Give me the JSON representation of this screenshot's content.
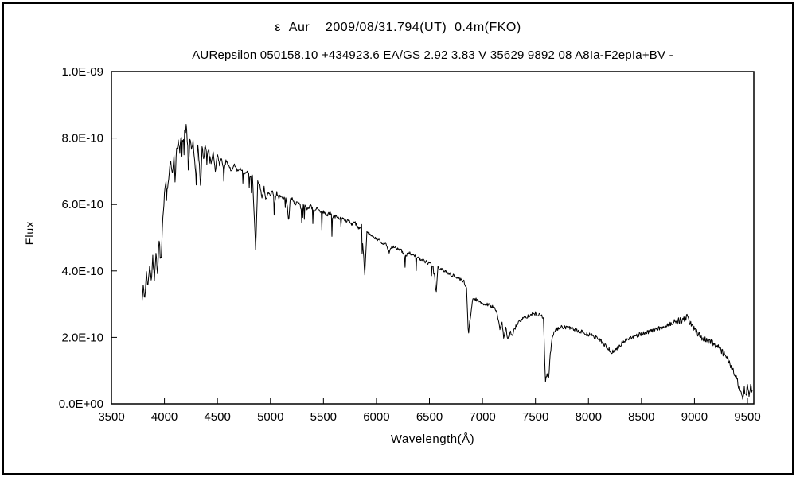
{
  "header": {
    "title": "ε  Aur    2009/08/31.794(UT)  0.4m(FKO)",
    "subtitle": "AURepsilon 050158.10 +434923.6 EA/GS 2.92 3.83 V 35629 9892 08 A8Ia-F2epIa+BV -"
  },
  "chart_data": {
    "type": "line",
    "title": "ε Aur 2009/08/31.794(UT) 0.4m(FKO)",
    "subtitle": "AURepsilon 050158.10 +434923.6 EA/GS 2.92 3.83 V 35629 9892 08 A8Ia-F2epIa+BV -",
    "xlabel": "Wavelength(Å)",
    "ylabel": "Flux",
    "xlim": [
      3500,
      9560
    ],
    "ylim": [
      0,
      1e-09
    ],
    "grid": false,
    "legend": "none",
    "line_color": "#000000",
    "x_ticks": [
      3500,
      4000,
      4500,
      5000,
      5500,
      6000,
      6500,
      7000,
      7500,
      8000,
      8500,
      9000,
      9500
    ],
    "y_tick_values_1e10": [
      0,
      2,
      4,
      6,
      8,
      10
    ],
    "y_tick_labels": [
      "0.0E+00",
      "2.0E-10",
      "4.0E-10",
      "6.0E-10",
      "8.0E-10",
      "1.0E-09"
    ],
    "flux_scale": 1e-10,
    "series": [
      {
        "name": "epsilon-aur-spectrum",
        "points_wavelength_flux1e10": [
          [
            3790,
            3.1
          ],
          [
            3800,
            3.5
          ],
          [
            3815,
            3.2
          ],
          [
            3830,
            3.9
          ],
          [
            3845,
            3.5
          ],
          [
            3860,
            4.2
          ],
          [
            3875,
            3.7
          ],
          [
            3890,
            4.4
          ],
          [
            3905,
            3.8
          ],
          [
            3920,
            4.6
          ],
          [
            3933,
            3.9
          ],
          [
            3950,
            4.9
          ],
          [
            3968,
            4.3
          ],
          [
            3985,
            5.6
          ],
          [
            4000,
            6.3
          ],
          [
            4015,
            6.6
          ],
          [
            4030,
            6.4
          ],
          [
            4045,
            7.0
          ],
          [
            4060,
            7.2
          ],
          [
            4075,
            6.9
          ],
          [
            4090,
            7.4
          ],
          [
            4101,
            6.7
          ],
          [
            4115,
            7.7
          ],
          [
            4130,
            7.9
          ],
          [
            4145,
            7.6
          ],
          [
            4160,
            8.1
          ],
          [
            4175,
            7.8
          ],
          [
            4190,
            8.2
          ],
          [
            4205,
            8.3
          ],
          [
            4220,
            7.8
          ],
          [
            4226,
            6.9
          ],
          [
            4240,
            8.0
          ],
          [
            4255,
            7.7
          ],
          [
            4270,
            7.9
          ],
          [
            4285,
            7.4
          ],
          [
            4300,
            6.6
          ],
          [
            4315,
            7.8
          ],
          [
            4330,
            7.2
          ],
          [
            4340,
            6.5
          ],
          [
            4355,
            7.7
          ],
          [
            4370,
            7.3
          ],
          [
            4385,
            7.8
          ],
          [
            4400,
            7.4
          ],
          [
            4420,
            7.7
          ],
          [
            4440,
            7.2
          ],
          [
            4460,
            7.6
          ],
          [
            4480,
            7.0
          ],
          [
            4500,
            7.5
          ],
          [
            4520,
            7.2
          ],
          [
            4540,
            7.4
          ],
          [
            4560,
            7.0
          ],
          [
            4580,
            7.3
          ],
          [
            4600,
            7.2
          ],
          [
            4630,
            7.0
          ],
          [
            4660,
            7.2
          ],
          [
            4690,
            7.0
          ],
          [
            4720,
            7.1
          ],
          [
            4750,
            6.9
          ],
          [
            4780,
            7.0
          ],
          [
            4810,
            6.8
          ],
          [
            4830,
            6.9
          ],
          [
            4861,
            4.6
          ],
          [
            4880,
            6.7
          ],
          [
            4900,
            6.6
          ],
          [
            4920,
            6.2
          ],
          [
            4940,
            6.5
          ],
          [
            4957,
            6.1
          ],
          [
            4980,
            6.4
          ],
          [
            5000,
            6.3
          ],
          [
            5020,
            6.4
          ],
          [
            5040,
            6.1
          ],
          [
            5060,
            6.35
          ],
          [
            5080,
            6.2
          ],
          [
            5100,
            6.3
          ],
          [
            5120,
            6.1
          ],
          [
            5140,
            6.25
          ],
          [
            5160,
            5.9
          ],
          [
            5172,
            5.5
          ],
          [
            5185,
            6.1
          ],
          [
            5200,
            6.2
          ],
          [
            5230,
            6.0
          ],
          [
            5260,
            6.1
          ],
          [
            5290,
            5.9
          ],
          [
            5320,
            6.0
          ],
          [
            5350,
            5.85
          ],
          [
            5380,
            5.95
          ],
          [
            5410,
            5.8
          ],
          [
            5440,
            5.9
          ],
          [
            5470,
            5.75
          ],
          [
            5500,
            5.8
          ],
          [
            5530,
            5.65
          ],
          [
            5560,
            5.75
          ],
          [
            5590,
            5.6
          ],
          [
            5620,
            5.65
          ],
          [
            5650,
            5.55
          ],
          [
            5680,
            5.6
          ],
          [
            5710,
            5.5
          ],
          [
            5740,
            5.55
          ],
          [
            5770,
            5.4
          ],
          [
            5800,
            5.45
          ],
          [
            5830,
            5.3
          ],
          [
            5860,
            5.35
          ],
          [
            5890,
            3.9
          ],
          [
            5910,
            5.15
          ],
          [
            5940,
            5.1
          ],
          [
            5970,
            5.0
          ],
          [
            6000,
            4.95
          ],
          [
            6030,
            4.9
          ],
          [
            6060,
            4.85
          ],
          [
            6090,
            4.8
          ],
          [
            6122,
            4.55
          ],
          [
            6150,
            4.75
          ],
          [
            6180,
            4.7
          ],
          [
            6210,
            4.65
          ],
          [
            6240,
            4.6
          ],
          [
            6270,
            4.4
          ],
          [
            6300,
            4.55
          ],
          [
            6330,
            4.5
          ],
          [
            6360,
            4.45
          ],
          [
            6390,
            4.4
          ],
          [
            6420,
            4.35
          ],
          [
            6450,
            4.3
          ],
          [
            6480,
            4.25
          ],
          [
            6510,
            4.2
          ],
          [
            6540,
            4.15
          ],
          [
            6563,
            3.3
          ],
          [
            6580,
            4.1
          ],
          [
            6610,
            4.05
          ],
          [
            6640,
            4.0
          ],
          [
            6670,
            3.95
          ],
          [
            6700,
            3.9
          ],
          [
            6730,
            3.85
          ],
          [
            6760,
            3.8
          ],
          [
            6790,
            3.75
          ],
          [
            6820,
            3.7
          ],
          [
            6850,
            3.5
          ],
          [
            6867,
            2.1
          ],
          [
            6885,
            2.6
          ],
          [
            6905,
            3.1
          ],
          [
            6930,
            3.15
          ],
          [
            6960,
            3.1
          ],
          [
            6990,
            3.05
          ],
          [
            7020,
            3.0
          ],
          [
            7050,
            3.0
          ],
          [
            7080,
            2.95
          ],
          [
            7110,
            2.9
          ],
          [
            7140,
            2.7
          ],
          [
            7165,
            2.2
          ],
          [
            7185,
            2.5
          ],
          [
            7200,
            1.95
          ],
          [
            7220,
            2.3
          ],
          [
            7240,
            1.9
          ],
          [
            7260,
            2.15
          ],
          [
            7285,
            2.1
          ],
          [
            7310,
            2.3
          ],
          [
            7340,
            2.45
          ],
          [
            7370,
            2.55
          ],
          [
            7400,
            2.6
          ],
          [
            7430,
            2.65
          ],
          [
            7460,
            2.7
          ],
          [
            7490,
            2.72
          ],
          [
            7520,
            2.7
          ],
          [
            7550,
            2.68
          ],
          [
            7575,
            2.6
          ],
          [
            7594,
            0.7
          ],
          [
            7610,
            0.85
          ],
          [
            7625,
            0.8
          ],
          [
            7640,
            1.5
          ],
          [
            7660,
            2.0
          ],
          [
            7680,
            2.2
          ],
          [
            7710,
            2.25
          ],
          [
            7740,
            2.3
          ],
          [
            7770,
            2.32
          ],
          [
            7800,
            2.3
          ],
          [
            7830,
            2.28
          ],
          [
            7860,
            2.25
          ],
          [
            7890,
            2.2
          ],
          [
            7920,
            2.18
          ],
          [
            7950,
            2.15
          ],
          [
            7980,
            2.1
          ],
          [
            8010,
            2.08
          ],
          [
            8040,
            2.05
          ],
          [
            8070,
            2.0
          ],
          [
            8100,
            1.95
          ],
          [
            8130,
            1.85
          ],
          [
            8160,
            1.75
          ],
          [
            8190,
            1.65
          ],
          [
            8220,
            1.55
          ],
          [
            8250,
            1.6
          ],
          [
            8280,
            1.7
          ],
          [
            8310,
            1.8
          ],
          [
            8340,
            1.9
          ],
          [
            8370,
            1.95
          ],
          [
            8400,
            2.0
          ],
          [
            8430,
            2.02
          ],
          [
            8460,
            2.05
          ],
          [
            8490,
            2.1
          ],
          [
            8520,
            2.12
          ],
          [
            8550,
            2.15
          ],
          [
            8580,
            2.18
          ],
          [
            8610,
            2.2
          ],
          [
            8640,
            2.25
          ],
          [
            8670,
            2.28
          ],
          [
            8700,
            2.3
          ],
          [
            8730,
            2.35
          ],
          [
            8760,
            2.4
          ],
          [
            8790,
            2.42
          ],
          [
            8820,
            2.45
          ],
          [
            8850,
            2.5
          ],
          [
            8880,
            2.52
          ],
          [
            8910,
            2.58
          ],
          [
            8935,
            2.6
          ],
          [
            8960,
            2.45
          ],
          [
            8985,
            2.3
          ],
          [
            9010,
            2.2
          ],
          [
            9040,
            2.1
          ],
          [
            9070,
            2.0
          ],
          [
            9100,
            1.95
          ],
          [
            9130,
            1.9
          ],
          [
            9160,
            1.88
          ],
          [
            9190,
            1.8
          ],
          [
            9220,
            1.7
          ],
          [
            9250,
            1.6
          ],
          [
            9280,
            1.5
          ],
          [
            9310,
            1.4
          ],
          [
            9340,
            1.15
          ],
          [
            9370,
            0.95
          ],
          [
            9400,
            0.75
          ],
          [
            9420,
            0.5
          ],
          [
            9440,
            0.3
          ],
          [
            9455,
            0.15
          ],
          [
            9470,
            0.45
          ],
          [
            9485,
            0.25
          ],
          [
            9500,
            0.55
          ],
          [
            9515,
            0.3
          ],
          [
            9530,
            0.5
          ],
          [
            9545,
            0.35
          ]
        ]
      }
    ]
  }
}
